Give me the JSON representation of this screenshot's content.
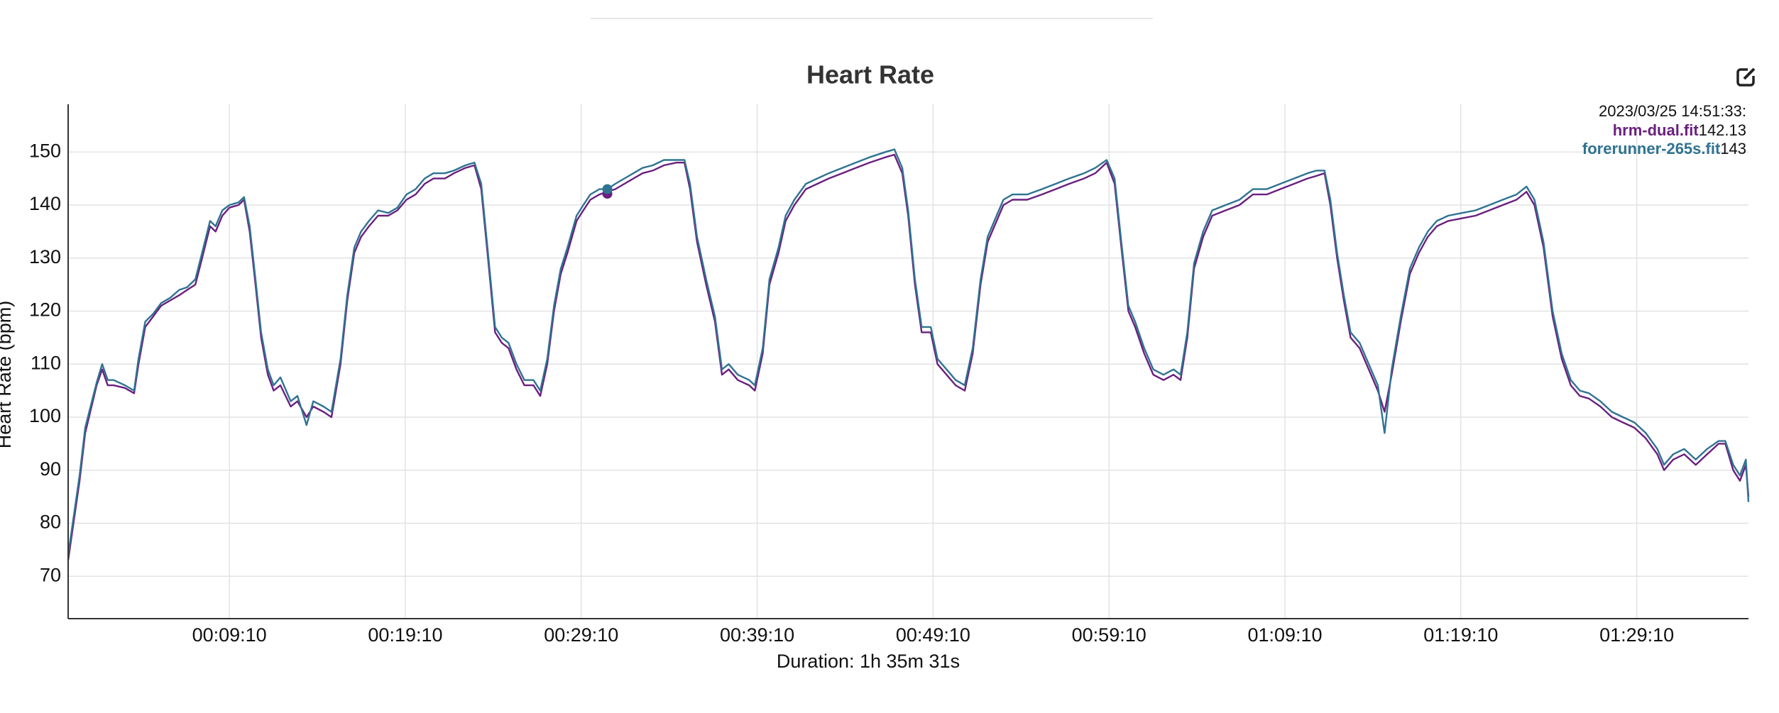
{
  "chart_data": {
    "type": "line",
    "title": "Heart Rate",
    "y_label": "Heart Rate (bpm)",
    "x_label": "Duration: 1h 35m 31s",
    "x": [
      0,
      39,
      58,
      97,
      116,
      135,
      155,
      194,
      225,
      240,
      263,
      290,
      317,
      348,
      379,
      406,
      434,
      457,
      484,
      503,
      526,
      550,
      581,
      600,
      619,
      639,
      658,
      681,
      701,
      724,
      759,
      782,
      813,
      836,
      871,
      898,
      929,
      952,
      976,
      999,
      1026,
      1057,
      1092,
      1123,
      1154,
      1185,
      1216,
      1246,
      1285,
      1316,
      1355,
      1386,
      1409,
      1432,
      1456,
      1479,
      1502,
      1529,
      1556,
      1587,
      1610,
      1634,
      1657,
      1680,
      1703,
      1734,
      1757,
      1781,
      1812,
      1839,
      1866,
      1897,
      1928,
      1959,
      1994,
      2032,
      2075,
      2102,
      2121,
      2145,
      2176,
      2206,
      2230,
      2253,
      2284,
      2323,
      2342,
      2369,
      2392,
      2423,
      2447,
      2477,
      2516,
      2555,
      2594,
      2640,
      2686,
      2733,
      2787,
      2818,
      2845,
      2865,
      2888,
      2911,
      2942,
      2965,
      2996,
      3027,
      3058,
      3085,
      3112,
      3136,
      3159,
      3190,
      3221,
      3271,
      3321,
      3368,
      3414,
      3465,
      3503,
      3542,
      3569,
      3592,
      3616,
      3639,
      3670,
      3701,
      3736,
      3770,
      3794,
      3817,
      3840,
      3871,
      3902,
      3948,
      3995,
      4041,
      4088,
      4134,
      4181,
      4227,
      4258,
      4285,
      4305,
      4328,
      4351,
      4374,
      4405,
      4436,
      4467,
      4490,
      4514,
      4545,
      4576,
      4607,
      4637,
      4668,
      4707,
      4754,
      4800,
      4847,
      4893,
      4940,
      4974,
      5001,
      5032,
      5063,
      5094,
      5125,
      5156,
      5187,
      5226,
      5265,
      5303,
      5342,
      5381,
      5420,
      5443,
      5474,
      5512,
      5551,
      5590,
      5629,
      5652,
      5679,
      5702,
      5722,
      5731
    ],
    "series": [
      {
        "name": "hrm-dual.fit",
        "color": "#6b1f7f",
        "values": [
          73,
          88,
          97,
          106,
          109,
          106,
          106,
          105.5,
          104.5,
          110,
          117,
          119,
          121,
          122,
          123,
          124,
          125,
          130,
          136,
          135,
          138,
          139.5,
          140,
          141,
          135,
          125,
          115,
          108,
          105,
          106,
          102,
          103,
          100,
          102,
          101,
          100,
          110,
          122,
          131,
          134,
          136,
          138,
          138,
          139,
          141,
          142,
          144,
          145,
          145,
          146,
          147,
          147.5,
          143,
          130,
          116,
          114,
          113,
          109,
          106,
          106,
          104,
          110,
          120,
          127,
          131,
          137,
          139,
          141,
          142,
          142.5,
          143,
          144,
          145,
          146,
          146.5,
          147.5,
          148,
          148,
          143,
          133,
          125,
          118,
          108,
          109,
          107,
          106,
          105,
          112,
          125,
          131,
          137,
          140,
          143,
          144,
          145,
          146,
          147,
          148,
          149,
          149.5,
          146,
          138,
          125,
          116,
          116,
          110,
          108,
          106,
          105,
          112,
          125,
          133,
          136,
          140,
          141,
          141,
          142,
          143,
          144,
          145,
          146,
          148,
          144,
          132,
          120,
          117,
          112,
          108,
          107,
          108,
          107,
          115,
          128,
          134,
          138,
          139,
          140,
          142,
          142,
          143,
          144,
          145,
          145.5,
          146,
          140,
          130,
          122,
          115,
          113,
          109,
          105,
          101,
          108,
          118,
          127,
          131,
          134,
          136,
          137,
          137.5,
          138,
          139,
          140,
          141,
          142.5,
          140,
          132,
          119,
          111,
          106,
          104,
          103.5,
          102,
          100,
          99,
          98,
          96,
          93,
          90,
          92,
          93,
          91,
          93,
          95,
          95,
          90,
          88,
          91,
          85
        ]
      },
      {
        "name": "forerunner-265s.fit",
        "color": "#2f7391",
        "values": [
          74,
          89,
          98,
          106.5,
          110,
          107,
          107,
          106,
          105,
          111,
          118,
          119.5,
          121.5,
          122.5,
          124,
          124.5,
          126,
          131,
          137,
          136,
          139,
          140,
          140.5,
          141.5,
          136,
          126,
          116,
          109,
          106,
          107.5,
          103,
          104,
          98.5,
          103,
          102,
          101,
          111,
          123,
          132,
          135,
          137,
          139,
          138.5,
          139.5,
          142,
          143,
          145,
          146,
          146,
          146.5,
          147.5,
          148,
          144,
          131,
          117,
          115,
          114,
          110,
          107,
          107,
          105,
          111,
          121,
          128,
          132,
          138,
          140,
          142,
          143,
          143,
          144,
          145,
          146,
          147,
          147.5,
          148.5,
          148.5,
          148.5,
          144,
          134,
          126,
          119,
          109,
          110,
          108,
          107,
          106,
          113,
          126,
          132,
          138,
          141,
          144,
          145,
          146,
          147,
          148,
          149,
          150,
          150.5,
          147,
          139,
          126,
          117,
          117,
          111,
          109,
          107,
          106,
          113,
          126,
          134,
          137,
          141,
          142,
          142,
          143,
          144,
          145,
          146,
          147,
          148.5,
          145,
          133,
          121,
          118,
          113,
          109,
          108,
          109,
          108,
          116,
          129,
          135,
          139,
          140,
          141,
          143,
          143,
          144,
          145,
          146,
          146.5,
          146.5,
          141,
          131,
          123,
          116,
          114,
          110,
          106,
          97,
          109,
          119,
          128,
          132,
          135,
          137,
          138,
          138.5,
          139,
          140,
          141,
          142,
          143.5,
          141,
          133,
          120,
          112,
          107,
          105,
          104.5,
          103,
          101,
          100,
          99,
          97,
          94,
          91,
          93,
          94,
          92,
          94,
          95.5,
          95.5,
          91,
          89,
          92,
          84
        ]
      }
    ],
    "xlim": [
      0,
      5731
    ],
    "ylim": [
      62,
      159
    ],
    "yticks": [
      70,
      80,
      90,
      100,
      110,
      120,
      130,
      140,
      150
    ],
    "xticks": [
      {
        "value": 550,
        "label": "00:09:10"
      },
      {
        "value": 1150,
        "label": "00:19:10"
      },
      {
        "value": 1750,
        "label": "00:29:10"
      },
      {
        "value": 2350,
        "label": "00:39:10"
      },
      {
        "value": 2950,
        "label": "00:49:10"
      },
      {
        "value": 3550,
        "label": "00:59:10"
      },
      {
        "value": 4150,
        "label": "01:09:10"
      },
      {
        "value": 4750,
        "label": "01:19:10"
      },
      {
        "value": 5350,
        "label": "01:29:10"
      }
    ],
    "grid": true,
    "tooltip": {
      "time": "2023/03/25 14:51:33:",
      "entries": [
        {
          "name": "hrm-dual.fit",
          "value": 142.13
        },
        {
          "name": "forerunner-265s.fit",
          "value": 143
        }
      ]
    }
  }
}
